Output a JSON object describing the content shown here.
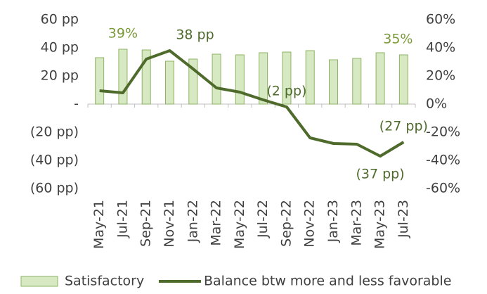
{
  "chart_data": {
    "type": "bar_line",
    "categories": [
      "May-21",
      "Jul-21",
      "Sep-21",
      "Nov-21",
      "Jan-22",
      "Mar-22",
      "May-22",
      "Jul-22",
      "Sep-22",
      "Nov-22",
      "Jan-23",
      "Mar-23",
      "May-23",
      "Jul-23"
    ],
    "series": [
      {
        "name": "Satisfactory",
        "type": "bar",
        "axis": "y2",
        "color": "#d6e9c2",
        "edge_color": "#8fb363",
        "label_color": "#7a9a3a",
        "values": [
          33,
          39,
          38.5,
          30.5,
          32,
          35.5,
          35,
          36.5,
          37,
          38,
          31.5,
          32.5,
          36.5,
          35
        ],
        "value_labels": [
          null,
          "39%",
          null,
          null,
          null,
          null,
          null,
          null,
          null,
          null,
          null,
          null,
          null,
          "35%"
        ]
      },
      {
        "name": "Balance btw more and less favorable",
        "type": "line",
        "axis": "y",
        "color": "#4f6b2c",
        "label_color": "#4f6b2c",
        "values": [
          9.5,
          8,
          32,
          38,
          25,
          11.5,
          8.5,
          3,
          -2,
          -24,
          -28,
          -28.5,
          -37,
          -27
        ],
        "value_labels": [
          null,
          null,
          null,
          "38 pp",
          null,
          null,
          null,
          null,
          "(2 pp)",
          null,
          null,
          null,
          "(37 pp)",
          "(27 pp)"
        ]
      }
    ],
    "ylim": [
      -60,
      60
    ],
    "yticks": [
      {
        "value": 60,
        "label": "60 pp"
      },
      {
        "value": 40,
        "label": "40 pp"
      },
      {
        "value": 20,
        "label": "20 pp"
      },
      {
        "value": 0,
        "label": "-"
      },
      {
        "value": -20,
        "label": "(20 pp)"
      },
      {
        "value": -40,
        "label": "(40 pp)"
      },
      {
        "value": -60,
        "label": "(60 pp)"
      }
    ],
    "y2lim": [
      -60,
      60
    ],
    "y2ticks": [
      {
        "value": 60,
        "label": "60%"
      },
      {
        "value": 40,
        "label": "40%"
      },
      {
        "value": 20,
        "label": "20%"
      },
      {
        "value": 0,
        "label": "0%"
      },
      {
        "value": -20,
        "label": "-20%"
      },
      {
        "value": -40,
        "label": "-40%"
      },
      {
        "value": -60,
        "label": "-60%"
      }
    ],
    "legend": "bottom"
  }
}
